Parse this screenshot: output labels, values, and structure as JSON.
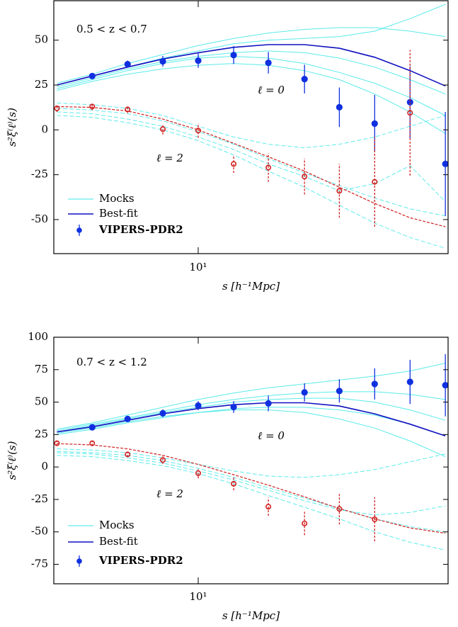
{
  "chart_data": [
    {
      "type": "line",
      "annotation": "0.5 < z < 0.7",
      "xlabel": "s [h⁻¹Mpc]",
      "ylabel": "s²ξ⁽ℓ⁾(s)",
      "log_x": true,
      "xlim": [
        3.9,
        51
      ],
      "ylim": [
        -69,
        72
      ],
      "xticks": [
        {
          "value": 10,
          "label": "10¹"
        }
      ],
      "yticks": [
        -50,
        -25,
        0,
        25,
        50
      ],
      "x": [
        3.98,
        5.01,
        6.31,
        7.94,
        10,
        12.6,
        15.8,
        20,
        25.1,
        31.6,
        39.8,
        50.1
      ],
      "legend": [
        {
          "name": "Mocks",
          "color": "#3ee6e6"
        },
        {
          "name": "Best-fit",
          "color": "#1010c0"
        },
        {
          "name": "VIPERS-PDR2",
          "color": "#1030e0"
        }
      ],
      "multipoles": [
        {
          "label": "ℓ = 0",
          "mock_color": "#3ee6e6",
          "fit_color": "#1010c0",
          "data_color": "#1030e0",
          "dashed": false,
          "mocks": [
            [
              24,
              29,
              34,
              38,
              41,
              43,
              44,
              43,
              40,
              35,
              28,
              20
            ],
            [
              26,
              31,
              37,
              42,
              47,
              51,
              54,
              56,
              57,
              57,
              55,
              52
            ],
            [
              22,
              27,
              31,
              34,
              36,
              37,
              36,
              33,
              28,
              20,
              10,
              -2
            ],
            [
              25,
              30,
              35,
              40,
              44,
              48,
              50,
              51,
              52,
              55,
              62,
              70
            ],
            [
              23,
              28,
              33,
              37,
              40,
              41,
              40,
              37,
              32,
              26,
              18,
              8
            ]
          ],
          "best_fit": [
            25,
            30,
            35,
            39.5,
            43,
            46,
            47.5,
            47.5,
            45.5,
            40.5,
            33,
            24.5
          ],
          "data": [
            null,
            30,
            36.6,
            38.2,
            38.6,
            41.7,
            37.4,
            28.3,
            12.6,
            3.5,
            15.4,
            -19
          ],
          "errors": [
            null,
            1.5,
            2,
            3,
            4,
            5,
            6,
            8,
            11,
            16,
            20,
            29
          ]
        },
        {
          "label": "ℓ = 2",
          "mock_color": "#3ee6e6",
          "fit_color": "#d02020",
          "data_color": "#d02020",
          "dashed": true,
          "mocks": [
            [
              12,
              11,
              9,
              5,
              -1,
              -8,
              -16,
              -24,
              -31,
              -38,
              -44,
              -48
            ],
            [
              8,
              7,
              4,
              0,
              -6,
              -14,
              -23,
              -32,
              -42,
              -52,
              -60,
              -66
            ],
            [
              15,
              14,
              12,
              8,
              2,
              -4,
              -8,
              -10,
              -8,
              -4,
              2,
              8
            ],
            [
              10,
              9,
              6,
              2,
              -4,
              -11,
              -19,
              -26,
              -34,
              -30,
              -20,
              -40
            ]
          ],
          "best_fit": [
            13,
            12.5,
            10.5,
            6,
            0,
            -7.5,
            -15,
            -23,
            -32,
            -41,
            -49,
            -54
          ],
          "data": [
            12,
            13,
            11.4,
            0.4,
            -0.4,
            -19,
            -21,
            -26,
            -34,
            -29,
            9.5,
            null
          ],
          "errors": [
            2,
            2,
            2,
            3,
            4,
            5,
            8,
            10,
            15,
            25,
            35,
            null
          ]
        }
      ]
    },
    {
      "type": "line",
      "annotation": "0.7 < z < 1.2",
      "xlabel": "s [h⁻¹Mpc]",
      "ylabel": "s²ξ⁽ℓ⁾(s)",
      "log_x": true,
      "xlim": [
        3.9,
        51
      ],
      "ylim": [
        -90,
        100
      ],
      "xticks": [
        {
          "value": 10,
          "label": "10¹"
        }
      ],
      "yticks": [
        -75,
        -50,
        -25,
        0,
        25,
        50,
        75,
        100
      ],
      "x": [
        3.98,
        5.01,
        6.31,
        7.94,
        10,
        12.6,
        15.8,
        20,
        25.1,
        31.6,
        39.8,
        50.1
      ],
      "legend": [
        {
          "name": "Mocks",
          "color": "#3ee6e6"
        },
        {
          "name": "Best-fit",
          "color": "#1010c0"
        },
        {
          "name": "VIPERS-PDR2",
          "color": "#1030e0"
        }
      ],
      "multipoles": [
        {
          "label": "ℓ = 0",
          "mock_color": "#3ee6e6",
          "fit_color": "#1010c0",
          "data_color": "#1030e0",
          "dashed": false,
          "mocks": [
            [
              27,
              32,
              37,
              42,
              46,
              50,
              52,
              53,
              53,
              50,
              44,
              36
            ],
            [
              25,
              29,
              34,
              38,
              42,
              45,
              46,
              46,
              44,
              40,
              33,
              24
            ],
            [
              29,
              34,
              40,
              46,
              52,
              57,
              61,
              64,
              67,
              70,
              74,
              80
            ],
            [
              26,
              30,
              35,
              39,
              42,
              44,
              44,
              42,
              37,
              30,
              20,
              8
            ],
            [
              28,
              33,
              38,
              43,
              48,
              52,
              55,
              57,
              58,
              58,
              56,
              52
            ]
          ],
          "best_fit": [
            27,
            31,
            36,
            41,
            45,
            48,
            49.5,
            49.5,
            47,
            41,
            33,
            24
          ],
          "data": [
            null,
            30.6,
            37,
            41.4,
            47.3,
            46.2,
            49,
            57.5,
            58.6,
            64,
            65.6,
            63
          ],
          "errors": [
            null,
            1.5,
            2,
            3,
            3.5,
            4.5,
            6,
            7,
            9,
            12,
            17,
            24
          ]
        },
        {
          "label": "ℓ = 2",
          "mock_color": "#3ee6e6",
          "fit_color": "#d02020",
          "data_color": "#d02020",
          "dashed": true,
          "mocks": [
            [
              12,
              11,
              9,
              5,
              -1,
              -8,
              -16,
              -24,
              -32,
              -40,
              -46,
              -50
            ],
            [
              9,
              8,
              5,
              1,
              -5,
              -13,
              -22,
              -31,
              -40,
              -50,
              -58,
              -64
            ],
            [
              14,
              13,
              11,
              7,
              2,
              -3,
              -7,
              -8,
              -6,
              -2,
              4,
              10
            ],
            [
              11,
              10,
              7,
              3,
              -3,
              -10,
              -18,
              -26,
              -33,
              -37,
              -35,
              -30
            ]
          ],
          "best_fit": [
            18,
            17,
            14,
            9,
            2,
            -6,
            -14,
            -23,
            -32,
            -40,
            -47,
            -51
          ],
          "data": [
            18.3,
            18.3,
            9.7,
            5.4,
            -4.8,
            -12.9,
            -30.6,
            -43.5,
            -32.3,
            -40.3,
            null,
            null
          ],
          "errors": [
            2,
            2,
            2,
            3,
            4,
            5,
            7,
            9,
            12,
            17,
            null,
            null
          ]
        }
      ]
    }
  ]
}
